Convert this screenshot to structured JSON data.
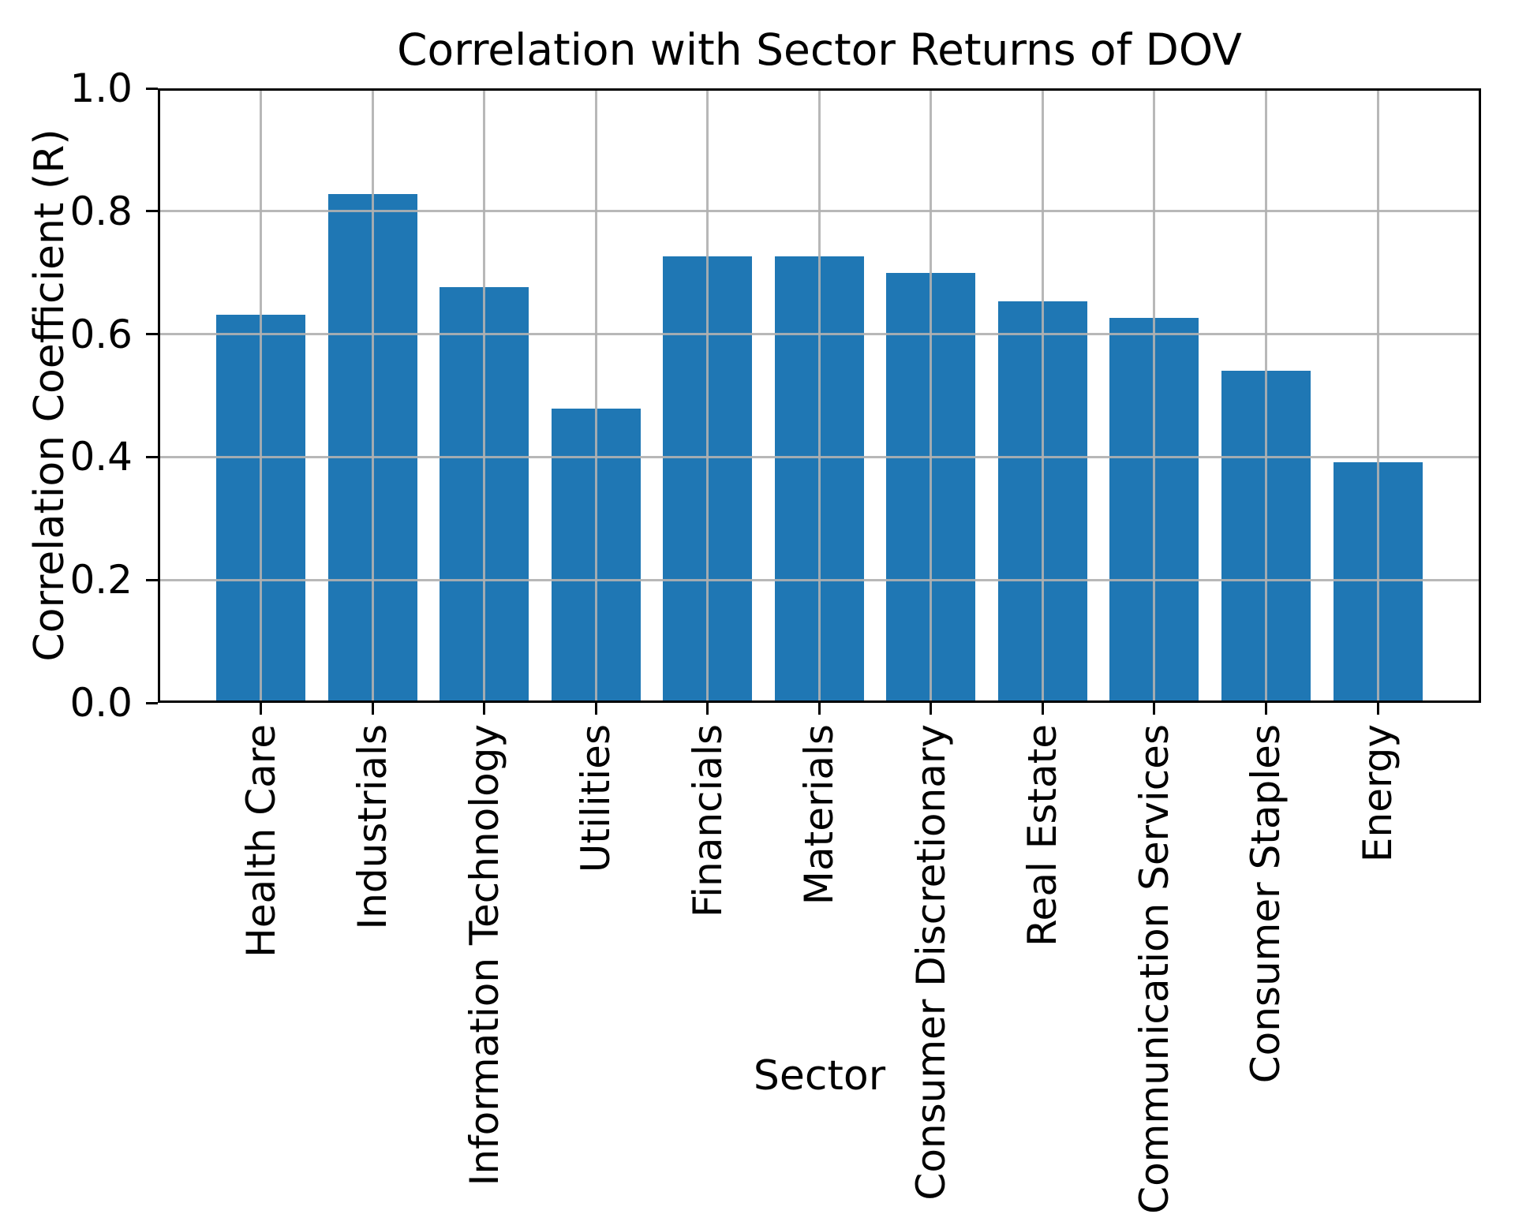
{
  "chart_data": {
    "type": "bar",
    "title": "Correlation with Sector Returns of DOV",
    "xlabel": "Sector",
    "ylabel": "Correlation Coefficient (R)",
    "categories": [
      "Health Care",
      "Industrials",
      "Information Technology",
      "Utilities",
      "Financials",
      "Materials",
      "Consumer Discretionary",
      "Real Estate",
      "Communication Services",
      "Consumer Staples",
      "Energy"
    ],
    "values": [
      0.631,
      0.828,
      0.676,
      0.479,
      0.726,
      0.727,
      0.699,
      0.654,
      0.626,
      0.54,
      0.391
    ],
    "ylim": [
      0.0,
      1.0
    ],
    "yticks": [
      0.0,
      0.2,
      0.4,
      0.6,
      0.8,
      1.0
    ],
    "ytick_labels": [
      "0.0",
      "0.2",
      "0.4",
      "0.6",
      "0.8",
      "1.0"
    ],
    "grid": "both",
    "legend": "none",
    "bar_color": "#1f77b4",
    "grid_color": "#b0b0b0",
    "axis_color": "#000000",
    "text_color": "#000000",
    "background_color": "#ffffff"
  }
}
